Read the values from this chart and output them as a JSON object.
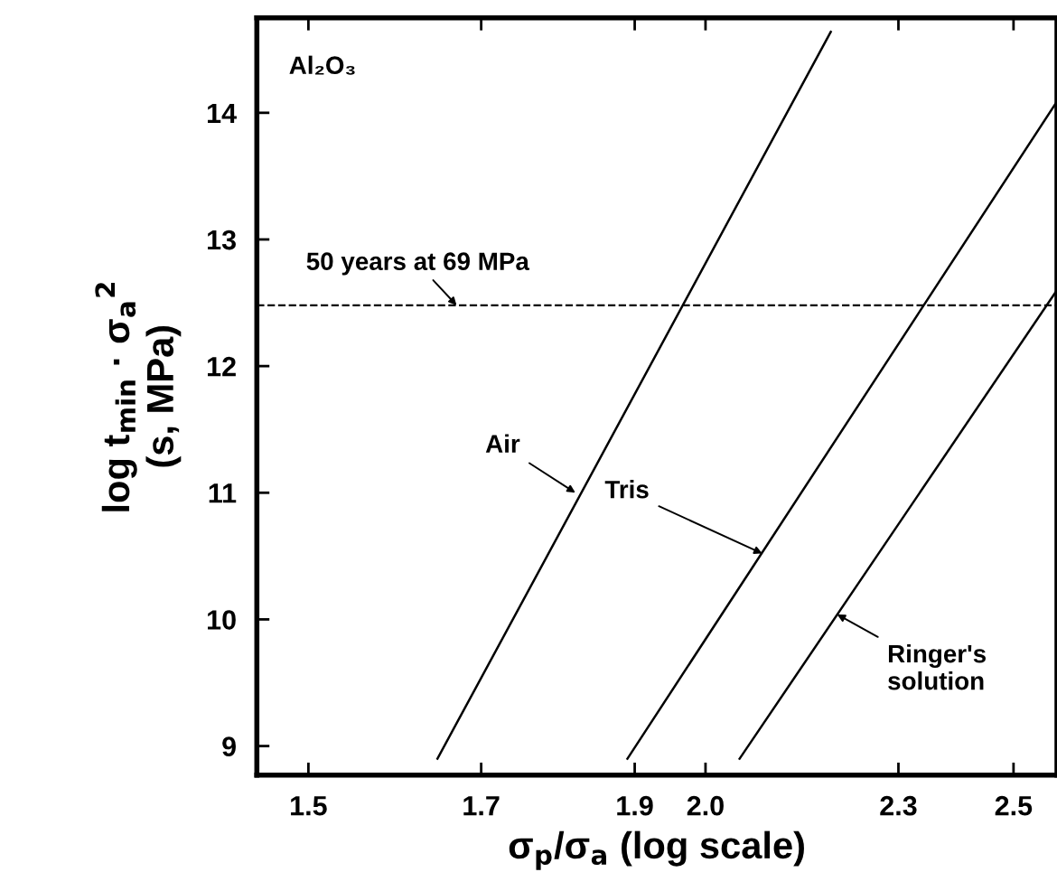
{
  "chart_data": {
    "type": "line",
    "xlabel": "σ$_{p}$/σ$_{a}$ (log scale)",
    "ylabel": "log t$_{min}$ · σ$_{a}$$^{2}$\n(s, MPa)",
    "log": "x",
    "xlim": [
      1.445,
      2.58
    ],
    "ylim": [
      8.77,
      14.75
    ],
    "xticks": [
      1.5,
      1.7,
      1.9,
      {
        "value": 2,
        "label": "2.0"
      },
      2.3,
      2.5
    ],
    "yticks": [
      9,
      10,
      11,
      12,
      13,
      14
    ],
    "grid": false,
    "legend": false,
    "marker": "none",
    "line_style": "solid",
    "series": [
      {
        "color": "#000000",
        "x": [
          1.647,
          2.19
        ],
        "values": [
          8.9,
          14.64
        ]
      },
      {
        "color": "#000000",
        "x": [
          1.89,
          2.58
        ],
        "values": [
          8.9,
          14.09
        ]
      },
      {
        "color": "#000000",
        "x": [
          2.05,
          2.58
        ],
        "values": [
          8.9,
          12.6
        ]
      }
    ],
    "ref_lines": [
      {
        "axis": "y",
        "value": 12.48,
        "color": "#000000",
        "line_style": "dashed"
      }
    ],
    "annotations": [
      "Al₂O₃",
      {
        "text": "50 years at 69 MPa",
        "x": 1.67,
        "y": 12.48
      },
      {
        "text": "Air",
        "x": 1.82,
        "y": 11.0
      },
      {
        "text": "Tris",
        "x": 2.084,
        "y": 10.52
      },
      {
        "text": "Ringer's solution",
        "x": 2.2,
        "y": 10.04
      }
    ]
  }
}
